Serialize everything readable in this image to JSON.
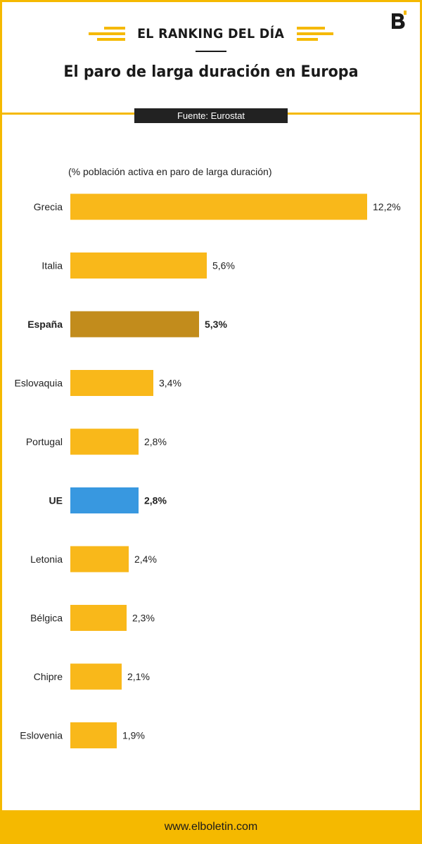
{
  "header": {
    "brand": "EL RANKING DEL DÍA",
    "title": "El paro de larga duración en Europa",
    "source": "Fuente: Eurostat"
  },
  "footer": {
    "url": "www.elboletin.com"
  },
  "colors": {
    "accent": "#f5b900",
    "bar_default": "#f9b81a",
    "bar_spain": "#c28c1c",
    "bar_eu": "#3898e0"
  },
  "chart_data": {
    "type": "bar",
    "orientation": "horizontal",
    "subtitle": "(% población activa en paro de larga duración)",
    "categories": [
      "Grecia",
      "Italia",
      "España",
      "Eslovaquia",
      "Portugal",
      "UE",
      "Letonia",
      "Bélgica",
      "Chipre",
      "Eslovenia"
    ],
    "values": [
      12.2,
      5.6,
      5.3,
      3.4,
      2.8,
      2.8,
      2.4,
      2.3,
      2.1,
      1.9
    ],
    "value_labels": [
      "12,2%",
      "5,6%",
      "5,3%",
      "3,4%",
      "2,8%",
      "2,8%",
      "2,4%",
      "2,3%",
      "2,1%",
      "1,9%"
    ],
    "highlighted": [
      "España",
      "UE"
    ],
    "xlim": [
      0,
      12.2
    ],
    "grid": false,
    "legend": "none"
  }
}
